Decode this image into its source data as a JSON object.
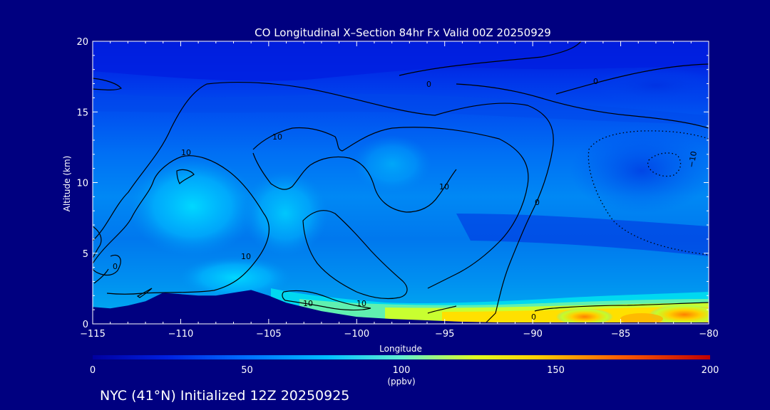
{
  "chart_data": {
    "type": "heatmap",
    "title": "CO Longitudinal X–Section 84hr  Fx Valid 00Z 20250929",
    "xlabel": "Longitude",
    "ylabel": "Altitude (km)",
    "xlim": [
      -115,
      -80
    ],
    "ylim": [
      0,
      20
    ],
    "x_ticks": [
      -115,
      -110,
      -105,
      -100,
      -95,
      -90,
      -85,
      -80
    ],
    "x_tick_labels": [
      "−115",
      "−110",
      "−105",
      "−100",
      "−95",
      "−90",
      "−85",
      "−80"
    ],
    "y_ticks": [
      0,
      5,
      10,
      15,
      20
    ],
    "y_tick_labels": [
      "0",
      "5",
      "10",
      "15",
      "20"
    ],
    "colorbar": {
      "min": 0,
      "max": 200,
      "ticks": [
        0,
        50,
        100,
        150,
        200
      ],
      "tick_labels": [
        "0",
        "50",
        "100",
        "150",
        "200"
      ],
      "unit": "(ppbv)"
    },
    "contour_labels": [
      "10",
      "10",
      "10",
      "10",
      "10",
      "10",
      "0",
      "0",
      "0",
      "0",
      "0",
      "−10"
    ],
    "footer": "NYC (41°N) Initialized 12Z 20250925",
    "terrain_km": [
      [
        -115,
        1.2
      ],
      [
        -114,
        1.1
      ],
      [
        -113,
        1.3
      ],
      [
        -112,
        1.6
      ],
      [
        -111,
        2.2
      ],
      [
        -110,
        2.1
      ],
      [
        -109,
        2.0
      ],
      [
        -108,
        2.0
      ],
      [
        -107,
        2.2
      ],
      [
        -106,
        2.4
      ],
      [
        -105,
        2.0
      ],
      [
        -104,
        1.5
      ],
      [
        -103,
        1.2
      ],
      [
        -102,
        0.9
      ],
      [
        -101,
        0.7
      ],
      [
        -100,
        0.5
      ],
      [
        -98,
        0.35
      ],
      [
        -96,
        0.25
      ],
      [
        -94,
        0.15
      ],
      [
        -92,
        0.1
      ],
      [
        -90,
        0.1
      ],
      [
        -85,
        0.1
      ],
      [
        -80,
        0.1
      ]
    ]
  }
}
